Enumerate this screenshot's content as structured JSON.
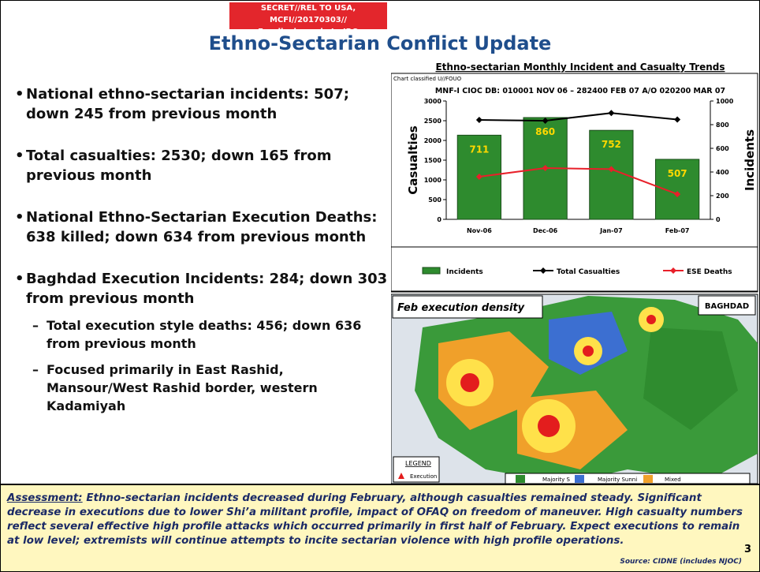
{
  "header": {
    "classification": "SECRET//REL TO USA, MCFI//20170303//",
    "display": "For display only to IRQ",
    "title": "Ethno-Sectarian Conflict Update"
  },
  "bullets": [
    {
      "text": "National ethno-sectarian incidents: 507; down 245 from previous month",
      "sub": []
    },
    {
      "text": "Total casualties: 2530; down 165 from previous month",
      "sub": []
    },
    {
      "text": "National Ethno-Sectarian Execution Deaths: 638 killed; down 634 from previous month",
      "sub": []
    },
    {
      "text": "Baghdad Execution Incidents: 284; down 303 from previous month",
      "sub": [
        "Total execution style deaths: 456; down 636 from previous month",
        "Focused primarily in East Rashid, Mansour/West Rashid border, western Kadamiyah"
      ]
    }
  ],
  "chart_data": {
    "type": "bar",
    "title": "Ethno-sectarian Monthly Incident and Casualty Trends",
    "classification": "Chart classified U//FOUO",
    "subtitle": "MNF-I CIOC DB: 010001 NOV 06 – 282400 FEB 07 A/O 020200 MAR 07",
    "categories": [
      "Nov-06",
      "Dec-06",
      "Jan-07",
      "Feb-07"
    ],
    "ylabel": "Casualties",
    "y2label": "Incidents",
    "ylim": [
      0,
      3000
    ],
    "yticks": [
      0,
      500,
      1000,
      1500,
      2000,
      2500,
      3000
    ],
    "y2lim": [
      0,
      1000
    ],
    "y2ticks": [
      0,
      200,
      400,
      600,
      800,
      1000
    ],
    "series": [
      {
        "name": "Incidents",
        "type": "bar",
        "axis": "y2",
        "color": "#2e8b2e",
        "values": [
          711,
          860,
          752,
          507
        ]
      },
      {
        "name": "Total Casualties",
        "type": "line",
        "color": "#000000",
        "values": [
          2520,
          2500,
          2695,
          2530
        ]
      },
      {
        "name": "ESE Deaths",
        "type": "line",
        "color": "#e8202a",
        "values": [
          1080,
          1300,
          1272,
          638
        ]
      }
    ]
  },
  "map": {
    "title": "Feb execution density",
    "region": "BAGHDAD",
    "legend_title": "LEGEND",
    "legend_execution": "Execution",
    "legend_items": [
      "Majority S",
      "Majority Sunni",
      "Mixed"
    ]
  },
  "assessment": {
    "label": "Assessment:",
    "text": "Ethno-sectarian incidents decreased during February, although casualties remained steady. Significant decrease in executions due to lower Shi’a militant profile, impact of OFAQ on freedom of maneuver. High casualty numbers reflect several effective high profile attacks which occurred primarily in first half of February. Expect executions to remain at low level; extremists will continue attempts to incite sectarian violence with high profile operations."
  },
  "page_number": "3",
  "source": "Source: CIDNE (includes NJOC)"
}
